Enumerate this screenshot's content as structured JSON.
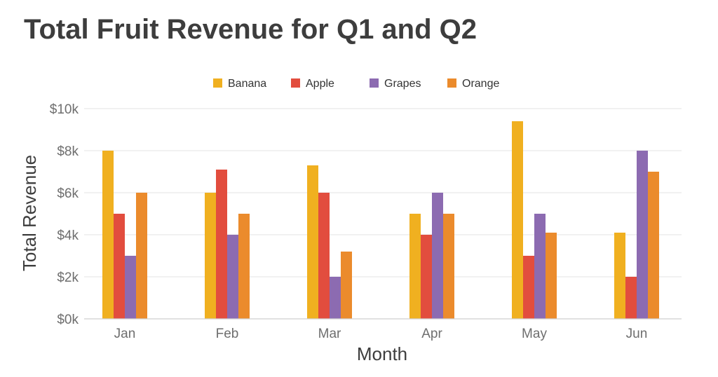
{
  "chart_data": {
    "type": "bar",
    "title": "Total Fruit Revenue for Q1 and Q2",
    "xlabel": "Month",
    "ylabel": "Total Revenue",
    "categories": [
      "Jan",
      "Feb",
      "Mar",
      "Apr",
      "May",
      "Jun"
    ],
    "ylim": [
      0,
      10000
    ],
    "yticks": [
      0,
      2000,
      4000,
      6000,
      8000,
      10000
    ],
    "ytick_labels": [
      "$0k",
      "$2k",
      "$4k",
      "$6k",
      "$8k",
      "$10k"
    ],
    "grid": true,
    "legend_position": "top-center",
    "series": [
      {
        "name": "Banana",
        "color": "#f0b020",
        "values": [
          8000,
          6000,
          7300,
          5000,
          9400,
          4100
        ]
      },
      {
        "name": "Apple",
        "color": "#e24d3e",
        "values": [
          5000,
          7100,
          6000,
          4000,
          3000,
          2000
        ]
      },
      {
        "name": "Grapes",
        "color": "#8c6bb1",
        "values": [
          3000,
          4000,
          2000,
          6000,
          5000,
          8000
        ]
      },
      {
        "name": "Orange",
        "color": "#eb8b2c",
        "values": [
          6000,
          5000,
          3200,
          5000,
          4100,
          7000
        ]
      }
    ]
  }
}
